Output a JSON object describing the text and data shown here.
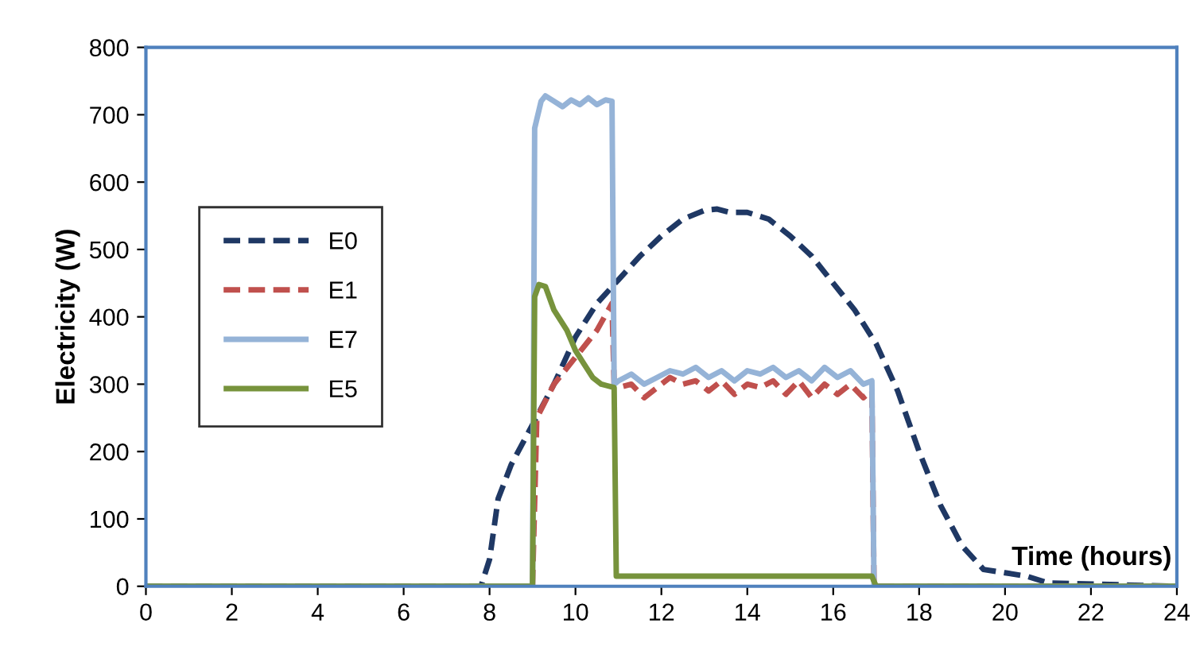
{
  "chart_data": {
    "type": "line",
    "xlabel": "Time (hours)",
    "ylabel": "Electricity (W)",
    "xlim": [
      0,
      24
    ],
    "xticks": [
      0,
      2,
      4,
      6,
      8,
      10,
      12,
      14,
      16,
      18,
      20,
      22,
      24
    ],
    "ylim": [
      0,
      800
    ],
    "yticks": [
      0,
      100,
      200,
      300,
      400,
      500,
      600,
      700,
      800
    ],
    "grid": false,
    "legend": "left",
    "marker": "none",
    "series": [
      {
        "name": "E0",
        "color": "#1f3864",
        "line_style": "dashed",
        "x": [
          0,
          7.8,
          8.0,
          8.2,
          8.5,
          9,
          9.5,
          10,
          10.5,
          11,
          11.5,
          12,
          12.5,
          13,
          13.3,
          13.6,
          14,
          14.5,
          15,
          15.5,
          16,
          16.5,
          17,
          17.5,
          18,
          18.5,
          19,
          19.5,
          20,
          20.5,
          21,
          24
        ],
        "values": [
          0,
          0,
          40,
          130,
          180,
          240,
          300,
          370,
          420,
          455,
          490,
          520,
          545,
          558,
          560,
          555,
          555,
          545,
          520,
          490,
          450,
          410,
          360,
          290,
          200,
          120,
          60,
          25,
          20,
          15,
          5,
          0
        ]
      },
      {
        "name": "E1",
        "color": "#c0504d",
        "line_style": "dashed",
        "x": [
          9,
          9.1,
          9.5,
          10,
          10.5,
          10.85,
          10.9,
          11.0,
          11.3,
          11.6,
          11.9,
          12.2,
          12.5,
          12.8,
          13.1,
          13.4,
          13.7,
          14.0,
          14.3,
          14.6,
          14.9,
          15.2,
          15.5,
          15.8,
          16.1,
          16.4,
          16.7,
          16.9,
          16.95,
          24
        ],
        "values": [
          0,
          250,
          300,
          340,
          380,
          420,
          300,
          295,
          300,
          280,
          295,
          310,
          300,
          305,
          290,
          305,
          285,
          300,
          295,
          305,
          285,
          305,
          280,
          300,
          285,
          300,
          280,
          290,
          0,
          0
        ]
      },
      {
        "name": "E7",
        "color": "#95b3d7",
        "line_style": "solid",
        "x": [
          0,
          9,
          9.05,
          9.2,
          9.3,
          9.5,
          9.7,
          9.9,
          10.1,
          10.3,
          10.5,
          10.7,
          10.85,
          10.9,
          11.0,
          11.3,
          11.6,
          11.9,
          12.2,
          12.5,
          12.8,
          13.1,
          13.4,
          13.7,
          14.0,
          14.3,
          14.6,
          14.9,
          15.2,
          15.5,
          15.8,
          16.1,
          16.4,
          16.7,
          16.9,
          16.95,
          24
        ],
        "values": [
          0,
          0,
          680,
          720,
          728,
          720,
          712,
          722,
          715,
          725,
          715,
          722,
          720,
          300,
          305,
          315,
          300,
          310,
          320,
          315,
          325,
          310,
          320,
          305,
          320,
          315,
          325,
          310,
          320,
          305,
          325,
          310,
          320,
          300,
          305,
          0,
          0
        ]
      },
      {
        "name": "E5",
        "color": "#77933c",
        "line_style": "solid",
        "x": [
          0,
          9.0,
          9.05,
          9.15,
          9.3,
          9.5,
          9.8,
          10,
          10.2,
          10.4,
          10.6,
          10.9,
          10.95,
          16.9,
          17.0,
          24
        ],
        "values": [
          0,
          0,
          430,
          448,
          445,
          410,
          380,
          350,
          330,
          310,
          300,
          295,
          15,
          15,
          0,
          0
        ]
      }
    ]
  }
}
